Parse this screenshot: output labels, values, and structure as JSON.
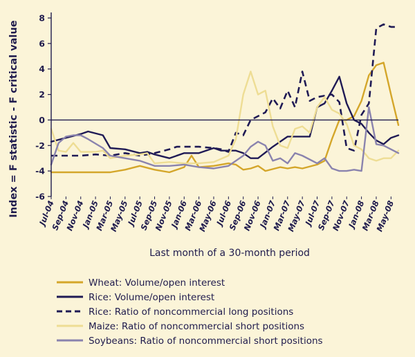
{
  "chart_data": {
    "type": "line",
    "xlabel": "Last month of a 30-month period",
    "ylabel": "Index = F statistic - F critical value",
    "ylim": [
      -6,
      8
    ],
    "yticks": [
      -6,
      -4,
      -2,
      0,
      2,
      4,
      6,
      8
    ],
    "x_tick_labels": [
      "Jul-04",
      "Sep-04",
      "Nov-04",
      "Jan-05",
      "Mar-05",
      "May-05",
      "Jul-05",
      "Sep-05",
      "Nov-05",
      "Jan-06",
      "Mar-06",
      "May-06",
      "Jul-06",
      "Sep-06",
      "Nov-06",
      "Jan-07",
      "Mar-07",
      "May-07",
      "Jul-07",
      "Sep-07",
      "Nov-07",
      "Jan-08",
      "Mar-08",
      "May-08"
    ],
    "x_start": "Jul-04",
    "x_end": "Jun-08",
    "grid": false,
    "legend_position": "bottom",
    "series": [
      {
        "name": "Wheat: Volume/open interest",
        "color": "#d4a62a",
        "dash": "solid",
        "points": [
          [
            "Jul-04",
            -4.1
          ],
          [
            "Sep-04",
            -4.1
          ],
          [
            "Nov-04",
            -4.1
          ],
          [
            "Jan-05",
            -4.1
          ],
          [
            "Mar-05",
            -4.1
          ],
          [
            "May-05",
            -3.9
          ],
          [
            "Jul-05",
            -3.6
          ],
          [
            "Sep-05",
            -3.9
          ],
          [
            "Nov-05",
            -4.1
          ],
          [
            "Jan-06",
            -3.7
          ],
          [
            "Feb-06",
            -2.8
          ],
          [
            "Mar-06",
            -3.7
          ],
          [
            "May-06",
            -3.6
          ],
          [
            "Jul-06",
            -3.4
          ],
          [
            "Aug-06",
            -3.5
          ],
          [
            "Sep-06",
            -3.9
          ],
          [
            "Oct-06",
            -3.8
          ],
          [
            "Nov-06",
            -3.6
          ],
          [
            "Dec-06",
            -4.0
          ],
          [
            "Feb-07",
            -3.7
          ],
          [
            "Mar-07",
            -3.8
          ],
          [
            "Apr-07",
            -3.7
          ],
          [
            "May-07",
            -3.8
          ],
          [
            "Jul-07",
            -3.5
          ],
          [
            "Aug-07",
            -3.2
          ],
          [
            "Sep-07",
            -1.5
          ],
          [
            "Oct-07",
            0.0
          ],
          [
            "Nov-07",
            0.0
          ],
          [
            "Dec-07",
            0.3
          ],
          [
            "Jan-08",
            1.5
          ],
          [
            "Feb-08",
            3.5
          ],
          [
            "Mar-08",
            4.3
          ],
          [
            "Apr-08",
            4.5
          ],
          [
            "May-08",
            2.0
          ],
          [
            "Jun-08",
            -0.4
          ]
        ]
      },
      {
        "name": "Rice: Volume/open interest",
        "color": "#1f1a55",
        "dash": "solid",
        "points": [
          [
            "Jul-04",
            -1.7
          ],
          [
            "Sep-04",
            -1.4
          ],
          [
            "Nov-04",
            -1.1
          ],
          [
            "Dec-04",
            -0.9
          ],
          [
            "Feb-05",
            -1.2
          ],
          [
            "Mar-05",
            -2.2
          ],
          [
            "May-05",
            -2.3
          ],
          [
            "Jul-05",
            -2.6
          ],
          [
            "Aug-05",
            -2.5
          ],
          [
            "Sep-05",
            -2.7
          ],
          [
            "Nov-05",
            -3.0
          ],
          [
            "Jan-06",
            -2.6
          ],
          [
            "Mar-06",
            -2.6
          ],
          [
            "May-06",
            -2.2
          ],
          [
            "Jun-06",
            -2.4
          ],
          [
            "Aug-06",
            -2.4
          ],
          [
            "Sep-06",
            -2.6
          ],
          [
            "Oct-06",
            -3.0
          ],
          [
            "Nov-06",
            -3.0
          ],
          [
            "Jan-07",
            -2.1
          ],
          [
            "Mar-07",
            -1.3
          ],
          [
            "Apr-07",
            -1.3
          ],
          [
            "Jun-07",
            -1.3
          ],
          [
            "Jul-07",
            1.0
          ],
          [
            "Aug-07",
            1.3
          ],
          [
            "Sep-07",
            2.3
          ],
          [
            "Oct-07",
            3.4
          ],
          [
            "Nov-07",
            1.3
          ],
          [
            "Dec-07",
            0.0
          ],
          [
            "Jan-08",
            -0.3
          ],
          [
            "Feb-08",
            -1.0
          ],
          [
            "Mar-08",
            -1.6
          ],
          [
            "Apr-08",
            -1.9
          ],
          [
            "May-08",
            -1.4
          ],
          [
            "Jun-08",
            -1.2
          ]
        ]
      },
      {
        "name": "Rice: Ratio of noncommercial long positions",
        "color": "#1f1a55",
        "dash": "dashed",
        "points": [
          [
            "Jul-04",
            -2.8
          ],
          [
            "Sep-04",
            -2.8
          ],
          [
            "Nov-04",
            -2.8
          ],
          [
            "Jan-05",
            -2.7
          ],
          [
            "Mar-05",
            -2.8
          ],
          [
            "May-05",
            -2.6
          ],
          [
            "Jul-05",
            -2.8
          ],
          [
            "Sep-05",
            -2.6
          ],
          [
            "Nov-05",
            -2.3
          ],
          [
            "Dec-05",
            -2.1
          ],
          [
            "Jan-06",
            -2.1
          ],
          [
            "Mar-06",
            -2.1
          ],
          [
            "May-06",
            -2.2
          ],
          [
            "Jun-06",
            -2.3
          ],
          [
            "Jul-06",
            -2.5
          ],
          [
            "Aug-06",
            -1.0
          ],
          [
            "Sep-06",
            -1.2
          ],
          [
            "Oct-06",
            0.0
          ],
          [
            "Nov-06",
            0.3
          ],
          [
            "Dec-06",
            0.6
          ],
          [
            "Jan-07",
            1.7
          ],
          [
            "Feb-07",
            0.9
          ],
          [
            "Mar-07",
            2.3
          ],
          [
            "Apr-07",
            1.0
          ],
          [
            "May-07",
            3.8
          ],
          [
            "Jun-07",
            1.5
          ],
          [
            "Jul-07",
            1.8
          ],
          [
            "Aug-07",
            1.9
          ],
          [
            "Sep-07",
            2.0
          ],
          [
            "Oct-07",
            1.4
          ],
          [
            "Nov-07",
            -2.2
          ],
          [
            "Dec-07",
            -2.4
          ],
          [
            "Jan-08",
            0.4
          ],
          [
            "Feb-08",
            1.3
          ],
          [
            "Mar-08",
            7.2
          ],
          [
            "Apr-08",
            7.5
          ],
          [
            "May-08",
            7.3
          ],
          [
            "Jun-08",
            7.3
          ]
        ]
      },
      {
        "name": "Maize: Ratio of noncommercial short positions",
        "color": "#eedd94",
        "dash": "solid",
        "points": [
          [
            "Jul-04",
            -0.7
          ],
          [
            "Aug-04",
            -2.4
          ],
          [
            "Sep-04",
            -2.5
          ],
          [
            "Oct-04",
            -1.8
          ],
          [
            "Nov-04",
            -2.5
          ],
          [
            "Jan-05",
            -2.5
          ],
          [
            "Feb-05",
            -2.4
          ],
          [
            "Mar-05",
            -3.0
          ],
          [
            "May-05",
            -2.8
          ],
          [
            "Jul-05",
            -2.7
          ],
          [
            "Aug-05",
            -2.6
          ],
          [
            "Sep-05",
            -3.4
          ],
          [
            "Nov-05",
            -3.3
          ],
          [
            "Jan-06",
            -3.4
          ],
          [
            "Mar-06",
            -3.4
          ],
          [
            "May-06",
            -3.3
          ],
          [
            "Jul-06",
            -2.8
          ],
          [
            "Aug-06",
            -1.5
          ],
          [
            "Sep-06",
            2.0
          ],
          [
            "Oct-06",
            3.8
          ],
          [
            "Nov-06",
            2.0
          ],
          [
            "Dec-06",
            2.3
          ],
          [
            "Jan-07",
            -0.5
          ],
          [
            "Feb-07",
            -2.0
          ],
          [
            "Mar-07",
            -2.2
          ],
          [
            "Apr-07",
            -0.7
          ],
          [
            "May-07",
            -0.5
          ],
          [
            "Jun-07",
            -1.0
          ],
          [
            "Jul-07",
            1.0
          ],
          [
            "Aug-07",
            1.8
          ],
          [
            "Sep-07",
            0.8
          ],
          [
            "Oct-07",
            0.5
          ],
          [
            "Nov-07",
            -0.3
          ],
          [
            "Dec-07",
            -2.0
          ],
          [
            "Jan-08",
            -2.3
          ],
          [
            "Feb-08",
            -3.0
          ],
          [
            "Mar-08",
            -3.2
          ],
          [
            "Apr-08",
            -3.0
          ],
          [
            "May-08",
            -3.0
          ],
          [
            "Jun-08",
            -2.4
          ]
        ]
      },
      {
        "name": "Soybeans: Ratio of noncommercial short positions",
        "color": "#8a83ae",
        "dash": "solid",
        "points": [
          [
            "Jul-04",
            -3.5
          ],
          [
            "Aug-04",
            -1.8
          ],
          [
            "Sep-04",
            -1.3
          ],
          [
            "Oct-04",
            -1.2
          ],
          [
            "Nov-04",
            -1.2
          ],
          [
            "Dec-04",
            -1.5
          ],
          [
            "Feb-05",
            -2.2
          ],
          [
            "Mar-05",
            -2.8
          ],
          [
            "May-05",
            -3.0
          ],
          [
            "Jul-05",
            -3.2
          ],
          [
            "Sep-05",
            -3.6
          ],
          [
            "Nov-05",
            -3.6
          ],
          [
            "Jan-06",
            -3.5
          ],
          [
            "Mar-06",
            -3.7
          ],
          [
            "May-06",
            -3.8
          ],
          [
            "Jul-06",
            -3.6
          ],
          [
            "Sep-06",
            -2.8
          ],
          [
            "Oct-06",
            -2.1
          ],
          [
            "Nov-06",
            -1.7
          ],
          [
            "Dec-06",
            -2.0
          ],
          [
            "Jan-07",
            -3.2
          ],
          [
            "Feb-07",
            -3.0
          ],
          [
            "Mar-07",
            -3.4
          ],
          [
            "Apr-07",
            -2.6
          ],
          [
            "May-07",
            -2.8
          ],
          [
            "Jul-07",
            -3.4
          ],
          [
            "Aug-07",
            -3.0
          ],
          [
            "Sep-07",
            -3.8
          ],
          [
            "Oct-07",
            -4.0
          ],
          [
            "Nov-07",
            -4.0
          ],
          [
            "Dec-07",
            -3.9
          ],
          [
            "Jan-08",
            -4.0
          ],
          [
            "Feb-08",
            1.0
          ],
          [
            "Mar-08",
            -1.9
          ],
          [
            "Apr-08",
            -2.0
          ],
          [
            "May-08",
            -2.3
          ],
          [
            "Jun-08",
            -2.6
          ]
        ]
      }
    ]
  }
}
